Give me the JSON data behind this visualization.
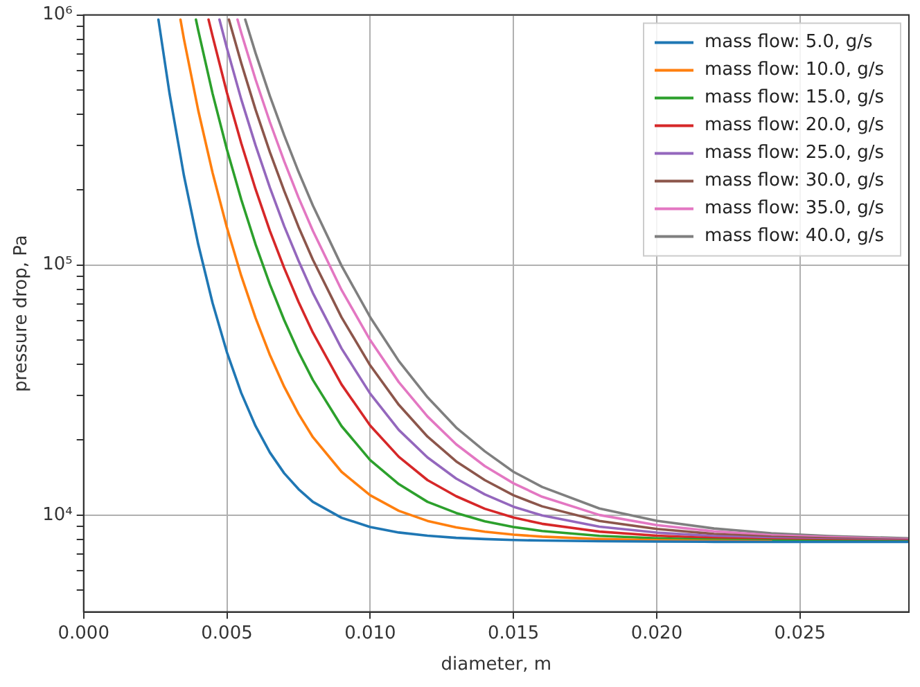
{
  "chart_data": {
    "type": "line",
    "xlabel": "diameter, m",
    "ylabel": "pressure drop, Pa",
    "xlim": [
      0,
      0.0288
    ],
    "xticks": [
      {
        "value": 0,
        "label": "0.000"
      },
      {
        "value": 0.005,
        "label": "0.005"
      },
      {
        "value": 0.01,
        "label": "0.010"
      },
      {
        "value": 0.015,
        "label": "0.015"
      },
      {
        "value": 0.02,
        "label": "0.020"
      },
      {
        "value": 0.025,
        "label": "0.025"
      }
    ],
    "ylim": [
      4100,
      1000000
    ],
    "log": "y",
    "yticks": [
      {
        "value": 5000,
        "label": null
      },
      {
        "value": 6000,
        "label": null
      },
      {
        "value": 7000,
        "label": null
      },
      {
        "value": 8000,
        "label": null
      },
      {
        "value": 9000,
        "label": null
      },
      {
        "value": 10000,
        "label": "10⁴"
      },
      {
        "value": 20000,
        "label": null
      },
      {
        "value": 30000,
        "label": null
      },
      {
        "value": 40000,
        "label": null
      },
      {
        "value": 50000,
        "label": null
      },
      {
        "value": 60000,
        "label": null
      },
      {
        "value": 70000,
        "label": null
      },
      {
        "value": 80000,
        "label": null
      },
      {
        "value": 90000,
        "label": null
      },
      {
        "value": 100000,
        "label": "10⁵"
      },
      {
        "value": 200000,
        "label": null
      },
      {
        "value": 300000,
        "label": null
      },
      {
        "value": 400000,
        "label": null
      },
      {
        "value": 500000,
        "label": null
      },
      {
        "value": 600000,
        "label": null
      },
      {
        "value": 700000,
        "label": null
      },
      {
        "value": 800000,
        "label": null
      },
      {
        "value": 900000,
        "label": null
      },
      {
        "value": 1000000,
        "label": "10⁶"
      }
    ],
    "grid": true,
    "legend": "top right",
    "marker": "none",
    "line_style": "solid",
    "series": [
      {
        "name": "mass flow: 5.0, g/s",
        "color": "#1f77b4",
        "x": [
          0.00261,
          0.003,
          0.0035,
          0.004,
          0.0045,
          0.005,
          0.0055,
          0.006,
          0.0065,
          0.007,
          0.0075,
          0.008,
          0.009,
          0.01,
          0.011,
          0.012,
          0.013,
          0.014,
          0.015,
          0.016,
          0.018,
          0.02,
          0.022,
          0.024,
          0.026,
          0.0288
        ],
        "values": [
          958000,
          484000,
          228000,
          121000,
          70500,
          44800,
          30800,
          22700,
          17800,
          14700,
          12700,
          11300,
          9760,
          8960,
          8520,
          8270,
          8110,
          8020,
          7950,
          7910,
          7860,
          7840,
          7820,
          7810,
          7810,
          7810
        ]
      },
      {
        "name": "mass flow: 10.0, g/s",
        "color": "#ff7f0e",
        "x": [
          0.00338,
          0.0035,
          0.004,
          0.0045,
          0.005,
          0.0055,
          0.006,
          0.0065,
          0.007,
          0.0075,
          0.008,
          0.009,
          0.01,
          0.011,
          0.012,
          0.013,
          0.014,
          0.015,
          0.016,
          0.018,
          0.02,
          0.022,
          0.024
        ],
        "values": [
          958000,
          802000,
          415000,
          234000,
          141200,
          90600,
          61400,
          43700,
          32600,
          25400,
          20500,
          14900,
          12000,
          10400,
          9480,
          8930,
          8580,
          8350,
          8200,
          8020,
          7930,
          7880,
          7850
        ]
      },
      {
        "name": "mass flow: 15.0, g/s",
        "color": "#2ca02c",
        "x": [
          0.00392,
          0.004,
          0.0045,
          0.005,
          0.0055,
          0.006,
          0.0065,
          0.007,
          0.0075,
          0.008,
          0.009,
          0.01,
          0.011,
          0.012,
          0.013,
          0.014,
          0.015,
          0.016,
          0.018,
          0.02,
          0.022,
          0.024,
          0.026,
          0.0288
        ],
        "values": [
          958000,
          868000,
          485000,
          290000,
          183000,
          121000,
          83700,
          60200,
          44900,
          34700,
          22700,
          16600,
          13300,
          11300,
          10200,
          9450,
          8960,
          8640,
          8260,
          8080,
          7970,
          7910,
          7870,
          7850
        ]
      },
      {
        "name": "mass flow: 20.0, g/s",
        "color": "#d62728",
        "x": [
          0.00436,
          0.0045,
          0.005,
          0.0055,
          0.006,
          0.0065,
          0.007,
          0.0075,
          0.008,
          0.009,
          0.01,
          0.011,
          0.012,
          0.013,
          0.014,
          0.015,
          0.016,
          0.018,
          0.02,
          0.022,
          0.024,
          0.026,
          0.0288
        ],
        "values": [
          958000,
          823000,
          489000,
          307000,
          201000,
          137000,
          97200,
          71200,
          53700,
          33300,
          22800,
          17100,
          13800,
          11900,
          10600,
          9780,
          9230,
          8590,
          8270,
          8090,
          7980,
          7930,
          7880
        ]
      },
      {
        "name": "mass flow: 25.0, g/s",
        "color": "#9467bd",
        "x": [
          0.00474,
          0.005,
          0.0055,
          0.006,
          0.0065,
          0.007,
          0.0075,
          0.008,
          0.009,
          0.01,
          0.011,
          0.012,
          0.013,
          0.014,
          0.015,
          0.016,
          0.018,
          0.02,
          0.022,
          0.024,
          0.026,
          0.0288
        ],
        "values": [
          958000,
          737000,
          460000,
          301000,
          204000,
          143000,
          104000,
          77300,
          46400,
          30600,
          21900,
          17000,
          14000,
          12100,
          10800,
          9970,
          8990,
          8510,
          8240,
          8080,
          7990,
          7920
        ]
      },
      {
        "name": "mass flow: 30.0, g/s",
        "color": "#8c564b",
        "x": [
          0.00507,
          0.0055,
          0.006,
          0.0065,
          0.007,
          0.0075,
          0.008,
          0.009,
          0.01,
          0.011,
          0.012,
          0.013,
          0.014,
          0.015,
          0.016,
          0.018,
          0.02,
          0.022,
          0.024,
          0.026,
          0.0288
        ],
        "values": [
          958000,
          642000,
          418000,
          283000,
          198000,
          142000,
          105000,
          61800,
          39700,
          27600,
          20600,
          16400,
          13800,
          12000,
          10840,
          9470,
          8800,
          8410,
          8190,
          8070,
          7960
        ]
      },
      {
        "name": "mass flow: 35.0, g/s",
        "color": "#e377c2",
        "x": [
          0.00537,
          0.0055,
          0.006,
          0.0065,
          0.007,
          0.0075,
          0.008,
          0.009,
          0.01,
          0.011,
          0.012,
          0.013,
          0.014,
          0.015,
          0.016,
          0.018,
          0.02,
          0.022,
          0.024,
          0.026,
          0.0288
        ],
        "values": [
          958000,
          849000,
          552000,
          373000,
          260000,
          186000,
          137000,
          79500,
          50100,
          34000,
          24800,
          19200,
          15700,
          13400,
          11840,
          10010,
          9120,
          8610,
          8310,
          8160,
          8010
        ]
      },
      {
        "name": "mass flow: 40.0, g/s",
        "color": "#7f7f7f",
        "x": [
          0.00564,
          0.006,
          0.0065,
          0.007,
          0.0075,
          0.008,
          0.009,
          0.01,
          0.011,
          0.012,
          0.013,
          0.014,
          0.015,
          0.016,
          0.018,
          0.02,
          0.022,
          0.024,
          0.026,
          0.0288
        ],
        "values": [
          958000,
          704000,
          474000,
          330000,
          236000,
          173000,
          99400,
          61900,
          41300,
          29600,
          22400,
          18000,
          14900,
          12960,
          10630,
          9490,
          8840,
          8460,
          8250,
          8070
        ]
      }
    ]
  }
}
